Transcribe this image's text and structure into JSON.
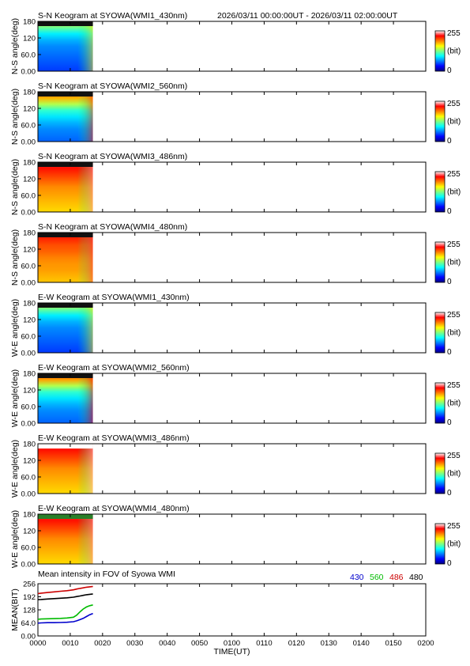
{
  "header": {
    "time_range": "2026/03/11 00:00:00UT - 2026/03/11 02:00:00UT"
  },
  "colorbar": {
    "max_label": "255",
    "unit_label": "(bit)",
    "min_label": "0",
    "stops": [
      "#00007f",
      "#0000ff",
      "#0080ff",
      "#00ffff",
      "#80ff80",
      "#ffff00",
      "#ff8000",
      "#ff0000",
      "#ffffff"
    ]
  },
  "chart_data": [
    {
      "type": "heatmap",
      "title": "S-N Keogram at SYOWA(WMI1_430nm)",
      "ylabel": "N-S angle(deg)",
      "yticks": [
        "180",
        "120",
        "60.0",
        "0.00"
      ],
      "ylim": [
        0,
        180
      ],
      "data_extent_minutes": [
        0,
        17
      ],
      "description_style": "blue/green low intensity, green rising near 0015",
      "profile": [
        0.18,
        0.2,
        0.22,
        0.24,
        0.26,
        0.3,
        0.36,
        0.48,
        0.6
      ],
      "top_band": "#111111"
    },
    {
      "type": "heatmap",
      "title": "S-N Keogram at SYOWA(WMI2_560nm)",
      "ylabel": "N-S angle(deg)",
      "yticks": [
        "180",
        "120",
        "60.0",
        "0.00"
      ],
      "ylim": [
        0,
        180
      ],
      "data_extent_minutes": [
        0,
        17
      ],
      "profile": [
        0.22,
        0.24,
        0.26,
        0.3,
        0.35,
        0.42,
        0.55,
        0.7,
        0.78
      ],
      "top_band": "#111111"
    },
    {
      "type": "heatmap",
      "title": "S-N Keogram at SYOWA(WMI3_486nm)",
      "ylabel": "N-S angle(deg)",
      "yticks": [
        "180",
        "120",
        "60.0",
        "0.00"
      ],
      "ylim": [
        0,
        180
      ],
      "data_extent_minutes": [
        0,
        17
      ],
      "profile": [
        0.66,
        0.68,
        0.7,
        0.72,
        0.74,
        0.78,
        0.82,
        0.86,
        0.9
      ],
      "top_band": "#111111"
    },
    {
      "type": "heatmap",
      "title": "S-N Keogram at SYOWA(WMI4_480nm)",
      "ylabel": "N-S angle(deg)",
      "yticks": [
        "180",
        "120",
        "60.0",
        "0.00"
      ],
      "ylim": [
        0,
        180
      ],
      "data_extent_minutes": [
        0,
        17
      ],
      "profile": [
        0.68,
        0.7,
        0.72,
        0.73,
        0.75,
        0.78,
        0.8,
        0.84,
        0.86
      ],
      "top_band": "#111111"
    },
    {
      "type": "heatmap",
      "title": "E-W Keogram at SYOWA(WMI1_430nm)",
      "ylabel": "W-E angle(deg)",
      "yticks": [
        "180",
        "120",
        "60.0",
        "0.00"
      ],
      "ylim": [
        0,
        180
      ],
      "data_extent_minutes": [
        0,
        17
      ],
      "profile": [
        0.18,
        0.2,
        0.22,
        0.24,
        0.26,
        0.3,
        0.36,
        0.48,
        0.6
      ],
      "top_band": "#111111"
    },
    {
      "type": "heatmap",
      "title": "E-W Keogram at SYOWA(WMI2_560nm)",
      "ylabel": "W-E angle(deg)",
      "yticks": [
        "180",
        "120",
        "60.0",
        "0.00"
      ],
      "ylim": [
        0,
        180
      ],
      "data_extent_minutes": [
        0,
        17
      ],
      "profile": [
        0.22,
        0.24,
        0.26,
        0.3,
        0.35,
        0.42,
        0.55,
        0.72,
        0.82
      ],
      "top_band": "#111111"
    },
    {
      "type": "heatmap",
      "title": "E-W Keogram at SYOWA(WMI3_486nm)",
      "ylabel": "W-E angle(deg)",
      "yticks": [
        "180",
        "120",
        "60.0",
        "0.00"
      ],
      "ylim": [
        0,
        180
      ],
      "data_extent_minutes": [
        0,
        17
      ],
      "profile": [
        0.66,
        0.68,
        0.7,
        0.72,
        0.74,
        0.78,
        0.82,
        0.86,
        0.92
      ],
      "top_band": "#ffffff"
    },
    {
      "type": "heatmap",
      "title": "E-W Keogram at SYOWA(WMI4_480nm)",
      "ylabel": "W-E angle(deg)",
      "yticks": [
        "180",
        "120",
        "60.0",
        "0.00"
      ],
      "ylim": [
        0,
        180
      ],
      "data_extent_minutes": [
        0,
        17
      ],
      "profile": [
        0.66,
        0.68,
        0.7,
        0.72,
        0.74,
        0.78,
        0.82,
        0.86,
        0.9
      ],
      "top_band": "#2a7f2a"
    },
    {
      "type": "line",
      "title": "Mean intensity in FOV of Syowa WMI",
      "ylabel": "MEAN(BIT)",
      "xlabel": "TIME(UT)",
      "ylim": [
        0,
        256
      ],
      "yticks": [
        "256",
        "192",
        "128",
        "64.0",
        "0.00"
      ],
      "xlim_minutes": [
        0,
        120
      ],
      "xticks": [
        "0000",
        "0010",
        "0020",
        "0030",
        "0040",
        "0050",
        "0100",
        "0110",
        "0120",
        "0130",
        "0140",
        "0150",
        "0200"
      ],
      "series": [
        {
          "name": "430",
          "color": "#0000cc",
          "x": [
            0,
            1,
            3,
            5,
            7,
            9,
            11,
            12,
            13,
            14,
            15,
            16,
            17
          ],
          "values": [
            63,
            64,
            65,
            65,
            66,
            67,
            70,
            74,
            80,
            86,
            95,
            104,
            110
          ]
        },
        {
          "name": "560",
          "color": "#00bb00",
          "x": [
            0,
            1,
            3,
            5,
            7,
            9,
            11,
            12,
            13,
            14,
            15,
            16,
            17
          ],
          "values": [
            82,
            83,
            84,
            85,
            86,
            88,
            92,
            102,
            118,
            132,
            142,
            148,
            152
          ]
        },
        {
          "name": "486",
          "color": "#cc0000",
          "x": [
            0,
            1,
            3,
            5,
            7,
            9,
            11,
            12,
            13,
            14,
            15,
            16,
            17
          ],
          "values": [
            208,
            210,
            213,
            216,
            219,
            222,
            226,
            230,
            233,
            236,
            239,
            241,
            243
          ]
        },
        {
          "name": "480",
          "color": "#000000",
          "x": [
            0,
            1,
            3,
            5,
            7,
            9,
            11,
            12,
            13,
            14,
            15,
            16,
            17
          ],
          "values": [
            178,
            179,
            181,
            183,
            185,
            187,
            190,
            193,
            196,
            199,
            202,
            204,
            206
          ]
        }
      ]
    }
  ]
}
